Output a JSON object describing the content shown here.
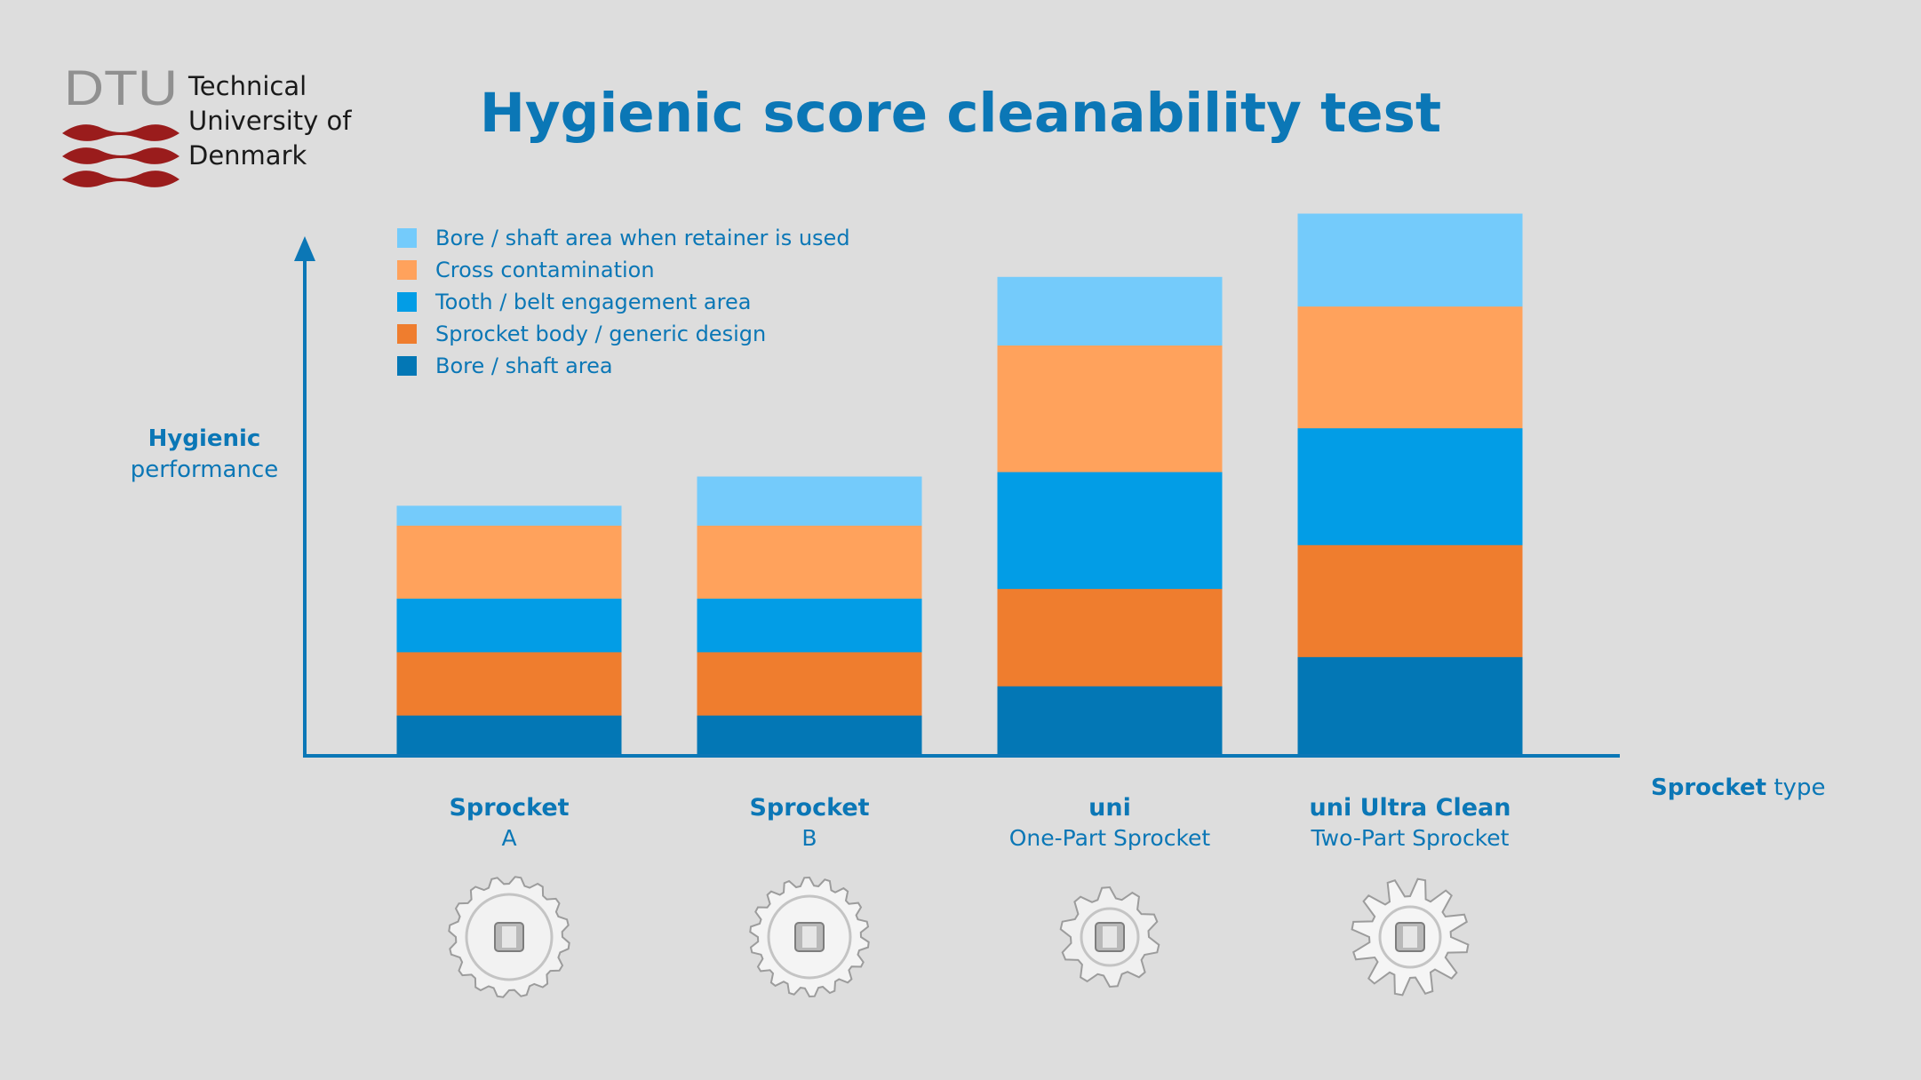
{
  "logo": {
    "mark": "DTU",
    "line1": "Technical",
    "line2": "University of",
    "line3": "Denmark"
  },
  "title": "Hygienic score cleanability test",
  "axis": {
    "y_bold": "Hygienic",
    "y_rest": "performance",
    "x_bold": "Sprocket",
    "x_rest": "type"
  },
  "colors": {
    "title": "#0b77b6",
    "axis": "#0b77b6",
    "background": "#dddddd"
  },
  "chart_data": {
    "type": "bar",
    "stacked": true,
    "title": "Hygienic score cleanability test",
    "ylabel": "Hygienic performance",
    "xlabel": "Sprocket type",
    "ylim": [
      0,
      11
    ],
    "grid": false,
    "legend_position": "top-left",
    "y_ticks_shown": false,
    "categories": [
      {
        "name": "Sprocket",
        "sub": "A",
        "icon": "sprocket-a-icon"
      },
      {
        "name": "Sprocket",
        "sub": "B",
        "icon": "sprocket-b-icon"
      },
      {
        "name": "uni",
        "sub": "One-Part Sprocket",
        "icon": "uni-one-part-sprocket-icon"
      },
      {
        "name": "uni Ultra Clean",
        "sub": "Two-Part Sprocket",
        "icon": "uni-ultra-clean-sprocket-icon"
      }
    ],
    "legend_order": [
      4,
      3,
      2,
      1,
      0
    ],
    "series": [
      {
        "name": "Bore / shaft area",
        "color": "#0377b5",
        "values": [
          0.8,
          0.8,
          1.4,
          2.0
        ]
      },
      {
        "name": "Sprocket body / generic design",
        "color": "#ef7d2e",
        "values": [
          1.3,
          1.3,
          2.0,
          2.3
        ]
      },
      {
        "name": "Tooth / belt engagement area",
        "color": "#029de6",
        "values": [
          1.1,
          1.1,
          2.4,
          2.4
        ]
      },
      {
        "name": "Cross contamination",
        "color": "#ffa25c",
        "values": [
          1.5,
          1.5,
          2.6,
          2.5
        ]
      },
      {
        "name": "Bore / shaft area when retainer is used",
        "color": "#74cbfb",
        "values": [
          0.4,
          1.0,
          1.4,
          1.9
        ]
      }
    ]
  }
}
